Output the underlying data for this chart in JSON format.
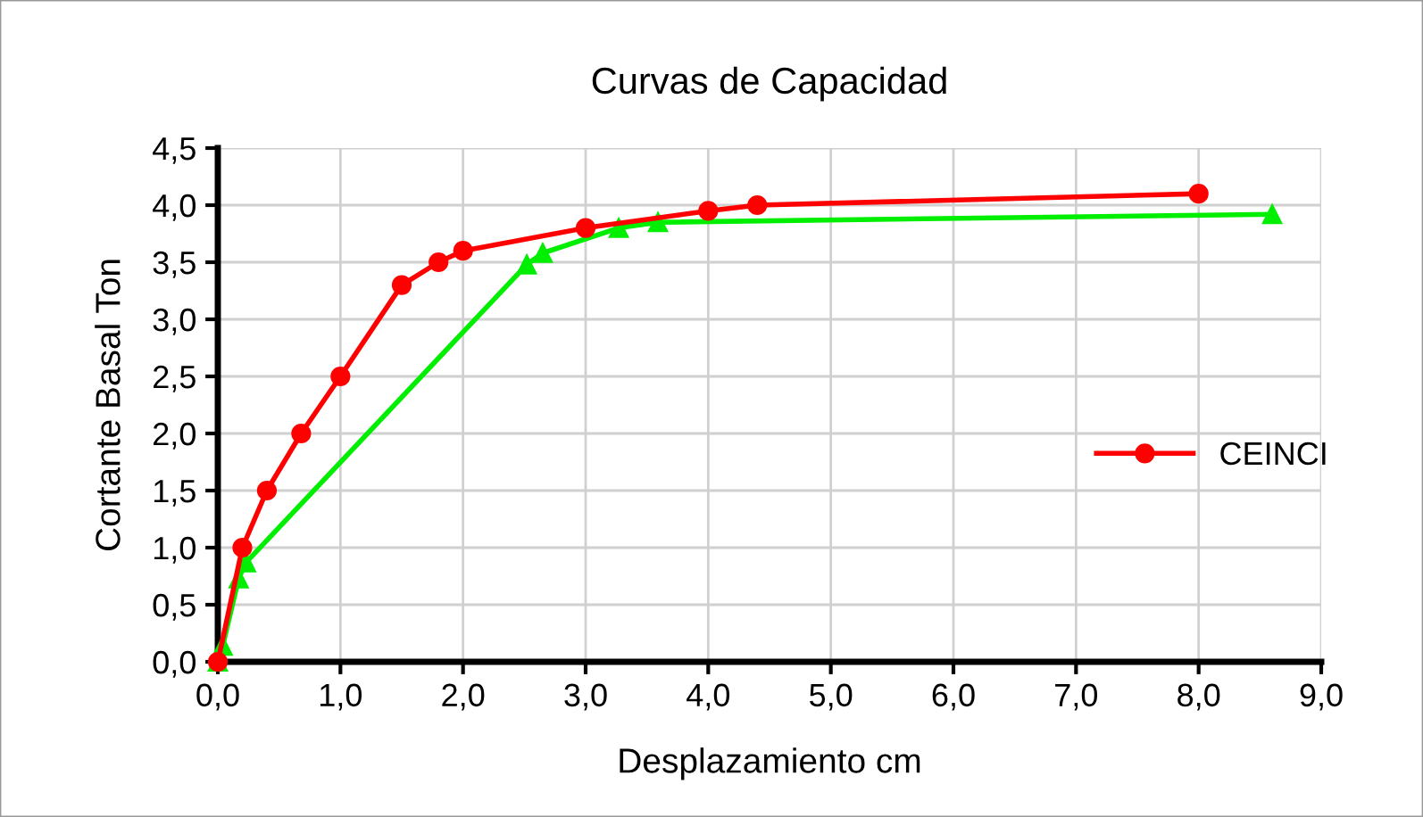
{
  "chart_data": {
    "type": "line",
    "title": "Curvas de Capacidad",
    "xlabel": "Desplazamiento cm",
    "ylabel": "Cortante Basal Ton",
    "series": [
      {
        "color": "#00ee00",
        "marker": "triangle",
        "x": [
          0,
          0.04,
          0.17,
          0.23,
          2.52,
          2.65,
          3.27,
          3.59,
          8.6
        ],
        "values": [
          0,
          0.14,
          0.73,
          0.87,
          3.48,
          3.58,
          3.8,
          3.85,
          3.92
        ]
      },
      {
        "name": "CEINCI",
        "color": "#ff0000",
        "marker": "circle",
        "x": [
          0,
          0.2,
          0.4,
          0.68,
          1.0,
          1.5,
          1.8,
          2.0,
          3.0,
          4.0,
          4.4,
          8.0
        ],
        "values": [
          0,
          1.0,
          1.5,
          2.0,
          2.5,
          3.3,
          3.5,
          3.6,
          3.8,
          3.95,
          4.0,
          4.1
        ]
      }
    ],
    "xlim": [
      0,
      9
    ],
    "ylim": [
      0,
      4.5
    ],
    "xticks": [
      {
        "value": 0,
        "label": "0,0"
      },
      {
        "value": 1,
        "label": "1,0"
      },
      {
        "value": 2,
        "label": "2,0"
      },
      {
        "value": 3,
        "label": "3,0"
      },
      {
        "value": 4,
        "label": "4,0"
      },
      {
        "value": 5,
        "label": "5,0"
      },
      {
        "value": 6,
        "label": "6,0"
      },
      {
        "value": 7,
        "label": "7,0"
      },
      {
        "value": 8,
        "label": "8,0"
      },
      {
        "value": 9,
        "label": "9,0"
      }
    ],
    "yticks": [
      {
        "value": 0,
        "label": "0,0"
      },
      {
        "value": 0.5,
        "label": "0,5"
      },
      {
        "value": 1,
        "label": "1,0"
      },
      {
        "value": 1.5,
        "label": "1,5"
      },
      {
        "value": 2,
        "label": "2,0"
      },
      {
        "value": 2.5,
        "label": "2,5"
      },
      {
        "value": 3,
        "label": "3,0"
      },
      {
        "value": 3.5,
        "label": "3,5"
      },
      {
        "value": 4,
        "label": "4,0"
      },
      {
        "value": 4.5,
        "label": "4,5"
      }
    ],
    "grid": true,
    "legend": "right",
    "line_style": "solid"
  }
}
